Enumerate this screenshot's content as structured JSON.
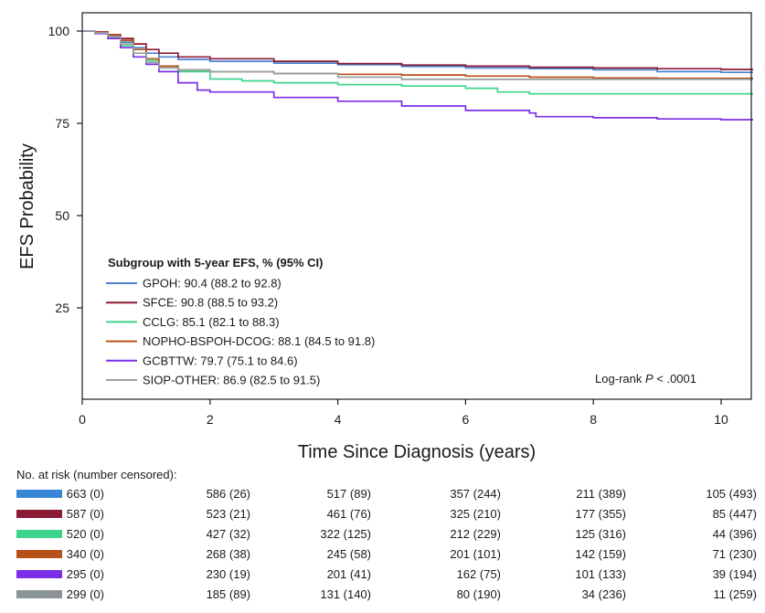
{
  "chart_data": {
    "type": "line",
    "ylabel": "EFS Probability",
    "xlabel": "Time Since Diagnosis (years)",
    "xlim": [
      0,
      10.5
    ],
    "ylim": [
      0,
      105
    ],
    "xticks": [
      "0",
      "2",
      "4",
      "6",
      "8",
      "10"
    ],
    "yticks": [
      "100",
      "75",
      "50",
      "25"
    ],
    "legend_title": "Subgroup with 5-year EFS, % (95% CI)",
    "annotation_prefix": "Log-rank ",
    "annotation_p": "P",
    "annotation_suffix": " < .0001",
    "series": [
      {
        "name": "GPOH: 90.4 (88.2 to 92.8)",
        "color": "#4a82d0",
        "points": [
          [
            0,
            100
          ],
          [
            0.2,
            99.6
          ],
          [
            0.4,
            98.8
          ],
          [
            0.6,
            97
          ],
          [
            0.8,
            95.5
          ],
          [
            1.0,
            94
          ],
          [
            1.2,
            93
          ],
          [
            1.5,
            92.3
          ],
          [
            2,
            91.8
          ],
          [
            3,
            91.3
          ],
          [
            4,
            90.9
          ],
          [
            5,
            90.4
          ],
          [
            6,
            90
          ],
          [
            7,
            89.8
          ],
          [
            8,
            89.5
          ],
          [
            9,
            89
          ],
          [
            10,
            88.8
          ],
          [
            10.5,
            88.8
          ]
        ]
      },
      {
        "name": "SFCE: 90.8 (88.5 to 93.2)",
        "color": "#8a1a35",
        "points": [
          [
            0,
            100
          ],
          [
            0.2,
            99.8
          ],
          [
            0.4,
            99
          ],
          [
            0.6,
            98
          ],
          [
            0.8,
            96.5
          ],
          [
            1.0,
            95
          ],
          [
            1.2,
            94
          ],
          [
            1.5,
            93
          ],
          [
            2,
            92.5
          ],
          [
            3,
            91.8
          ],
          [
            4,
            91.2
          ],
          [
            5,
            90.8
          ],
          [
            6,
            90.5
          ],
          [
            7,
            90.2
          ],
          [
            8,
            90
          ],
          [
            9,
            89.8
          ],
          [
            10,
            89.6
          ],
          [
            10.5,
            89.6
          ]
        ]
      },
      {
        "name": "CCLG: 85.1 (82.1 to 88.3)",
        "color": "#3ed48e",
        "points": [
          [
            0,
            100
          ],
          [
            0.2,
            99.5
          ],
          [
            0.4,
            98
          ],
          [
            0.6,
            96
          ],
          [
            0.8,
            94
          ],
          [
            1.0,
            92
          ],
          [
            1.2,
            90.5
          ],
          [
            1.5,
            89
          ],
          [
            2,
            87
          ],
          [
            2.5,
            86.5
          ],
          [
            3,
            86
          ],
          [
            4,
            85.5
          ],
          [
            5,
            85.1
          ],
          [
            6,
            84.5
          ],
          [
            6.5,
            83.5
          ],
          [
            7,
            83
          ],
          [
            8,
            83
          ],
          [
            9,
            83
          ],
          [
            10.5,
            83
          ]
        ]
      },
      {
        "name": "NOPHO-BSPOH-DCOG: 88.1 (84.5 to 91.8)",
        "color": "#b8501a",
        "points": [
          [
            0,
            100
          ],
          [
            0.2,
            99.7
          ],
          [
            0.4,
            99
          ],
          [
            0.6,
            97.5
          ],
          [
            0.8,
            95
          ],
          [
            1.0,
            92.5
          ],
          [
            1.2,
            90.5
          ],
          [
            1.5,
            89.5
          ],
          [
            2,
            89
          ],
          [
            3,
            88.5
          ],
          [
            4,
            88.3
          ],
          [
            5,
            88.1
          ],
          [
            6,
            87.8
          ],
          [
            7,
            87.5
          ],
          [
            8,
            87.3
          ],
          [
            9,
            87.2
          ],
          [
            10.5,
            87.2
          ]
        ]
      },
      {
        "name": "GCBTTW: 79.7 (75.1 to 84.6)",
        "color": "#7a2ee6",
        "points": [
          [
            0,
            100
          ],
          [
            0.2,
            99.3
          ],
          [
            0.4,
            98
          ],
          [
            0.6,
            95.5
          ],
          [
            0.8,
            93
          ],
          [
            1.0,
            91
          ],
          [
            1.2,
            89
          ],
          [
            1.5,
            86
          ],
          [
            1.8,
            84
          ],
          [
            2,
            83.5
          ],
          [
            3,
            82
          ],
          [
            4,
            81
          ],
          [
            5,
            79.7
          ],
          [
            6,
            78.5
          ],
          [
            7,
            77.8
          ],
          [
            7.1,
            76.8
          ],
          [
            8,
            76.5
          ],
          [
            9,
            76.2
          ],
          [
            10,
            76
          ],
          [
            10.5,
            76
          ]
        ]
      },
      {
        "name": "SIOP-OTHER: 86.9 (82.5 to 91.5)",
        "color": "#9aa0a0",
        "points": [
          [
            0,
            100
          ],
          [
            0.2,
            99.5
          ],
          [
            0.4,
            98.5
          ],
          [
            0.6,
            96.5
          ],
          [
            0.8,
            94
          ],
          [
            1.0,
            91.5
          ],
          [
            1.2,
            90
          ],
          [
            1.5,
            89.5
          ],
          [
            2,
            89
          ],
          [
            3,
            88.5
          ],
          [
            4,
            87.5
          ],
          [
            5,
            86.9
          ],
          [
            6,
            86.9
          ],
          [
            7,
            86.9
          ],
          [
            8,
            86.9
          ],
          [
            9,
            86.9
          ],
          [
            10.5,
            86.9
          ]
        ]
      }
    ]
  },
  "risk_table": {
    "title": "No. at risk (number censored):",
    "rows": [
      {
        "color": "#3a86d6",
        "cells": [
          "663 (0)",
          "586 (26)",
          "517 (89)",
          "357 (244)",
          "211 (389)",
          "105 (493)"
        ]
      },
      {
        "color": "#8a1a35",
        "cells": [
          "587 (0)",
          "523 (21)",
          "461 (76)",
          "325 (210)",
          "177 (355)",
          "85 (447)"
        ]
      },
      {
        "color": "#3ed48e",
        "cells": [
          "520 (0)",
          "427 (32)",
          "322 (125)",
          "212 (229)",
          "125 (316)",
          "44 (396)"
        ]
      },
      {
        "color": "#b8501a",
        "cells": [
          "340 (0)",
          "268 (38)",
          "245 (58)",
          "201 (101)",
          "142 (159)",
          "71 (230)"
        ]
      },
      {
        "color": "#7a2ee6",
        "cells": [
          "295 (0)",
          "230 (19)",
          "201 (41)",
          "162 (75)",
          "101 (133)",
          "39 (194)"
        ]
      },
      {
        "color": "#8a9494",
        "cells": [
          "299 (0)",
          "185 (89)",
          "131 (140)",
          "80 (190)",
          "34 (236)",
          "11 (259)"
        ]
      }
    ]
  }
}
